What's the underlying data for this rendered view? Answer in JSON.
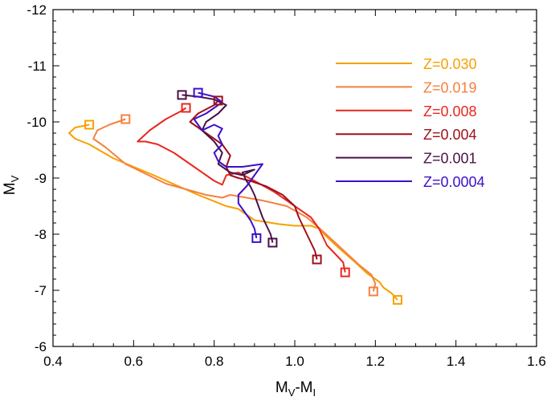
{
  "chart_data": {
    "type": "line",
    "title": "",
    "xlabel": {
      "main": "M",
      "sub1": "V",
      "mid": "-M",
      "sub2": "I"
    },
    "ylabel": {
      "main": "M",
      "sub": "V"
    },
    "xlim": [
      0.4,
      1.6
    ],
    "ylim": [
      -6,
      -12
    ],
    "y_inverted": true,
    "grid": false,
    "legend_position": "top-right",
    "x_ticks": [
      0.4,
      0.6,
      0.8,
      1.0,
      1.2,
      1.4,
      1.6
    ],
    "x_tick_labels": [
      "0.4",
      "0.6",
      "0.8",
      "1.0",
      "1.2",
      "1.4",
      "1.6"
    ],
    "y_ticks": [
      -12,
      -11,
      -10,
      -9,
      -8,
      -7,
      -6
    ],
    "y_tick_labels": [
      "-12",
      "-11",
      "-10",
      "-9",
      "-8",
      "-7",
      "-6"
    ],
    "series": [
      {
        "name": "Z=0.030",
        "color": "#f7a000",
        "x": [
          1.255,
          1.24,
          1.22,
          1.21,
          1.18,
          1.15,
          1.11,
          1.08,
          1.06,
          1.04,
          1.0,
          0.96,
          0.9,
          0.86,
          0.83,
          0.76,
          0.65,
          0.55,
          0.49,
          0.455,
          0.44,
          0.455,
          0.49
        ],
        "y": [
          -6.83,
          -6.95,
          -7.05,
          -7.15,
          -7.3,
          -7.5,
          -7.75,
          -7.95,
          -8.1,
          -8.15,
          -8.15,
          -8.18,
          -8.25,
          -8.45,
          -8.5,
          -8.7,
          -9.05,
          -9.35,
          -9.6,
          -9.7,
          -9.8,
          -9.9,
          -9.95
        ],
        "end_markers": [
          [
            1.255,
            -6.83
          ],
          [
            0.49,
            -9.95
          ]
        ]
      },
      {
        "name": "Z=0.019",
        "color": "#f5803e",
        "x": [
          1.195,
          1.2,
          1.19,
          1.16,
          1.13,
          1.1,
          1.07,
          1.03,
          0.98,
          0.92,
          0.84,
          0.82,
          0.78,
          0.68,
          0.58,
          0.53,
          0.5,
          0.51,
          0.54,
          0.58
        ],
        "y": [
          -6.98,
          -7.12,
          -7.28,
          -7.45,
          -7.65,
          -7.85,
          -8.05,
          -8.3,
          -8.5,
          -8.6,
          -8.7,
          -8.65,
          -8.7,
          -8.9,
          -9.25,
          -9.55,
          -9.7,
          -9.85,
          -9.95,
          -10.05
        ],
        "end_markers": [
          [
            1.195,
            -6.98
          ],
          [
            0.58,
            -10.05
          ]
        ]
      },
      {
        "name": "Z=0.008",
        "color": "#e8281e",
        "x": [
          1.125,
          1.12,
          1.1,
          1.08,
          1.07,
          1.06,
          1.04,
          1.0,
          0.98,
          0.95,
          0.9,
          0.86,
          0.83,
          0.82,
          0.8,
          0.75,
          0.7,
          0.66,
          0.63,
          0.61,
          0.64,
          0.68,
          0.72,
          0.73
        ],
        "y": [
          -7.32,
          -7.5,
          -7.65,
          -7.8,
          -7.95,
          -8.1,
          -8.3,
          -8.5,
          -8.6,
          -8.75,
          -8.95,
          -9.1,
          -9.05,
          -8.88,
          -8.95,
          -9.2,
          -9.45,
          -9.6,
          -9.65,
          -9.65,
          -9.85,
          -10.05,
          -10.2,
          -10.25
        ],
        "end_markers": [
          [
            1.125,
            -7.32
          ],
          [
            0.73,
            -10.25
          ]
        ]
      },
      {
        "name": "Z=0.004",
        "color": "#a0101a",
        "x": [
          1.055,
          1.05,
          1.04,
          1.03,
          1.02,
          1.01,
          1.0,
          0.97,
          0.93,
          0.89,
          0.86,
          0.84,
          0.83,
          0.84,
          0.82,
          0.78,
          0.74,
          0.76,
          0.8,
          0.81
        ],
        "y": [
          -7.55,
          -7.7,
          -7.85,
          -8.0,
          -8.15,
          -8.3,
          -8.5,
          -8.7,
          -8.85,
          -8.95,
          -9.0,
          -9.05,
          -9.2,
          -9.4,
          -9.6,
          -9.8,
          -10.0,
          -10.15,
          -10.3,
          -10.38
        ],
        "end_markers": [
          [
            1.055,
            -7.55
          ],
          [
            0.81,
            -10.38
          ]
        ]
      },
      {
        "name": "Z=0.001",
        "color": "#4a1248",
        "x": [
          0.945,
          0.94,
          0.93,
          0.92,
          0.91,
          0.9,
          0.89,
          0.88,
          0.87,
          0.9,
          0.87,
          0.84,
          0.81,
          0.82,
          0.8,
          0.77,
          0.78,
          0.81,
          0.83,
          0.8,
          0.76,
          0.72
        ],
        "y": [
          -7.85,
          -8.0,
          -8.15,
          -8.3,
          -8.5,
          -8.7,
          -8.85,
          -8.95,
          -9.1,
          -9.15,
          -9.05,
          -9.1,
          -9.25,
          -9.45,
          -9.65,
          -9.85,
          -10.0,
          -10.15,
          -10.3,
          -10.4,
          -10.45,
          -10.48
        ],
        "end_markers": [
          [
            0.945,
            -7.85
          ],
          [
            0.72,
            -10.48
          ]
        ]
      },
      {
        "name": "Z=0.0004",
        "color": "#3c10c8",
        "x": [
          0.905,
          0.9,
          0.89,
          0.875,
          0.86,
          0.86,
          0.88,
          0.92,
          0.87,
          0.83,
          0.81,
          0.8,
          0.82,
          0.81,
          0.82,
          0.8,
          0.77,
          0.75,
          0.78,
          0.82,
          0.8,
          0.76
        ],
        "y": [
          -7.93,
          -8.1,
          -8.25,
          -8.4,
          -8.55,
          -8.7,
          -8.85,
          -9.25,
          -9.2,
          -9.2,
          -9.3,
          -9.45,
          -9.6,
          -9.75,
          -9.88,
          -9.95,
          -9.85,
          -10.05,
          -10.15,
          -10.35,
          -10.45,
          -10.52
        ],
        "end_markers": [
          [
            0.905,
            -7.93
          ],
          [
            0.76,
            -10.52
          ]
        ]
      }
    ]
  }
}
